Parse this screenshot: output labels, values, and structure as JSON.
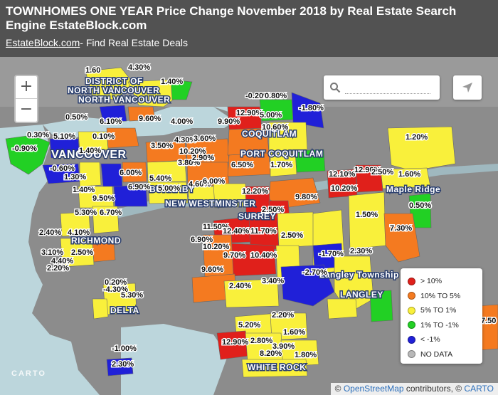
{
  "header": {
    "title": "TOWNHOMES ONE YEAR Price Change November 2018 by Real Estate Search Engine EstateBlock.com",
    "subtitle_link": "EstateBlock.com",
    "subtitle_rest": "- Find Real Estate Deals"
  },
  "zoom": {
    "in": "+",
    "out": "−"
  },
  "search": {
    "placeholder": ""
  },
  "colors": {
    "over_10": "#e0201b",
    "10_to_5": "#f47a20",
    "5_to_1": "#f9f03b",
    "1_to_neg1": "#22d024",
    "under_neg1": "#2020d8",
    "no_data": "#b8b8b8",
    "land": "#8c8c8c",
    "water": "#bcd6dc"
  },
  "legend": {
    "items": [
      {
        "label": "> 10%",
        "color": "#e0201b"
      },
      {
        "label": "10% TO 5%",
        "color": "#f47a20"
      },
      {
        "label": "5% TO 1%",
        "color": "#f9f03b"
      },
      {
        "label": "1% TO -1%",
        "color": "#22d024"
      },
      {
        "label": "< -1%",
        "color": "#2020d8"
      },
      {
        "label": "NO DATA",
        "color": "#b8b8b8"
      }
    ]
  },
  "cities": {
    "district_nv": "DISTRICT OF",
    "north_vancouver_1": "NORTH VANCOUVER",
    "north_vancouver_2": "NORTH VANCOUVER",
    "vancouver": "VANCOUVER",
    "burnaby": "BURNABY",
    "new_westminster": "NEW WESTMINSTER",
    "surrey": "SURREY",
    "coquitlam": "COQUITLAM",
    "port_coquitlam": "PORT COQUITLAM",
    "maple_ridge": "Maple Ridge",
    "richmond": "RICHMOND",
    "delta": "DELTA",
    "langley_township": "Langley Township",
    "langley": "LANGLEY",
    "white_rock": "WHITE ROCK"
  },
  "labels": {
    "l01": "1.60",
    "l02": "4.30%",
    "l03": "1.40%",
    "l04": "0.50%",
    "l05": "6.10%",
    "l06": "9.60%",
    "l07": "4.00%",
    "l08": "0.30%",
    "l09": "5.10%",
    "l10": "-0.90%",
    "l11": "-0.60%",
    "l12": "1.30%",
    "l13": "1.40%",
    "l14": "9.50%",
    "l15": "6.00%",
    "l16": "6.90%",
    "l17": "5.40%",
    "l18": "5.00%",
    "l19": "4.30%",
    "l20": "3.60%",
    "l21": "10.20%",
    "l22": "3.50%",
    "l23": "3.80%",
    "l24": "6.50%",
    "l25": "4.60%",
    "l26": "6.00%",
    "l27": "12.90%",
    "l28": "-0.20%",
    "l29": "0.80%",
    "l30": "-1.80%",
    "l31": "9.90%",
    "l32": "5.00%",
    "l33": "10.60%",
    "l34": "1.70%",
    "l35": "1.20%",
    "l36": "12.10%",
    "l37": "12.90%",
    "l38": "2.50%",
    "l39": "1.60%",
    "l40": "10.20%",
    "l41": "9.80%",
    "l42": "0.50%",
    "l43": "12.20%",
    "l44": "2.50%",
    "l45": "1.50%",
    "l46": "7.30%",
    "l47": "5.30%",
    "l48": "6.70%",
    "l49": "2.40%",
    "l50": "4.10%",
    "l51": "3.10%",
    "l52": "2.50%",
    "l53": "4.40%",
    "l54": "2.20%",
    "l55": "11.50%",
    "l56": "12.40%",
    "l57": "11.70%",
    "l58": "2.50%",
    "l59": "6.90%",
    "l60": "10.20%",
    "l61": "9.70%",
    "l62": "10.40%",
    "l63": "-1.70%",
    "l64": "2.30%",
    "l65": "9.60%",
    "l66": "-2.70%",
    "l67": "3.40%",
    "l68": "2.40%",
    "l69": "0.20%",
    "l70": "-4.30%",
    "l71": "5.30%",
    "l72": "2.20%",
    "l73": "5.20%",
    "l74": "1.60%",
    "l75": "12.90%",
    "l76": "2.80%",
    "l77": "3.90%",
    "l78": "8.20%",
    "l79": "1.80%",
    "l80": "-1.00%",
    "l81": "2.30%",
    "l82": "7.50",
    "l83": "0.10%",
    "l84": "1.40%",
    "l85": "2.90%"
  },
  "watermark": "CARTO",
  "attribution": {
    "prefix": "© ",
    "osm": "OpenStreetMap",
    "middle": " contributors, © ",
    "carto": "CARTO"
  }
}
